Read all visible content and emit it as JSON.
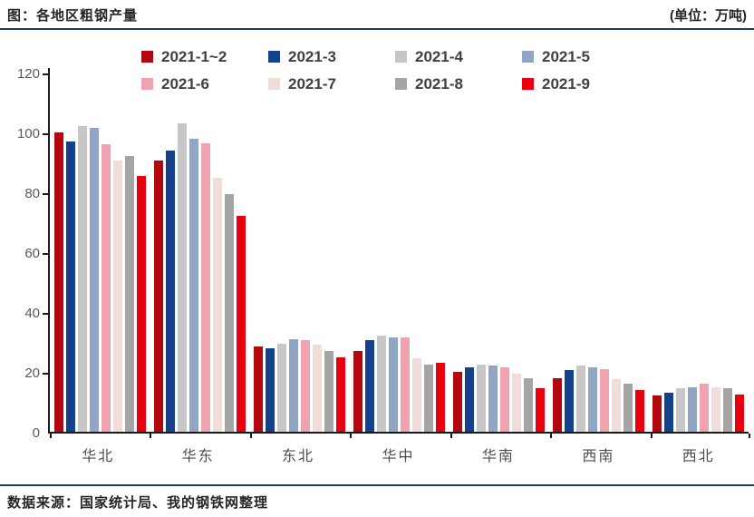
{
  "header": {
    "title": "图：各地区粗钢产量",
    "unit": "(单位：万吨)"
  },
  "footer": {
    "source": "数据来源：国家统计局、我的钢铁网整理"
  },
  "colors": {
    "rule_line": "#1f3864",
    "axis_line": "#1a1a1a",
    "tick_label": "#595959",
    "legend_text": "#404040"
  },
  "chart_data": {
    "type": "bar",
    "title": "各地区粗钢产量",
    "unit": "万吨",
    "categories": [
      "华北",
      "华东",
      "东北",
      "华中",
      "华南",
      "西南",
      "西北"
    ],
    "series": [
      {
        "name": "2021-1~2",
        "color": "#b2070f",
        "values": [
          100,
          90.5,
          28.5,
          27,
          20,
          18,
          12
        ]
      },
      {
        "name": "2021-3",
        "color": "#15418c",
        "values": [
          97,
          94,
          28,
          30.5,
          21.5,
          20.5,
          13
        ]
      },
      {
        "name": "2021-4",
        "color": "#c7c7c7",
        "values": [
          102,
          103,
          29.5,
          32,
          22.5,
          22,
          14.5
        ]
      },
      {
        "name": "2021-5",
        "color": "#90a6c4",
        "values": [
          101.5,
          98,
          31,
          31.5,
          22,
          21.5,
          15
        ]
      },
      {
        "name": "2021-6",
        "color": "#efa2af",
        "values": [
          96,
          96.5,
          30.5,
          31.5,
          21.5,
          21,
          16
        ]
      },
      {
        "name": "2021-7",
        "color": "#f0dcd9",
        "values": [
          90.5,
          85,
          29,
          24.5,
          19.5,
          17.5,
          15
        ]
      },
      {
        "name": "2021-8",
        "color": "#a5a5a5",
        "values": [
          92,
          79.5,
          27,
          22.5,
          18,
          16,
          14.5
        ]
      },
      {
        "name": "2021-9",
        "color": "#e8000f",
        "values": [
          85.5,
          72,
          25,
          23,
          14.5,
          14,
          12.5
        ]
      }
    ],
    "ylim": [
      0,
      120
    ],
    "yticks": [
      0,
      20,
      40,
      60,
      80,
      100,
      120
    ],
    "grid": false,
    "legend_position": "top"
  }
}
